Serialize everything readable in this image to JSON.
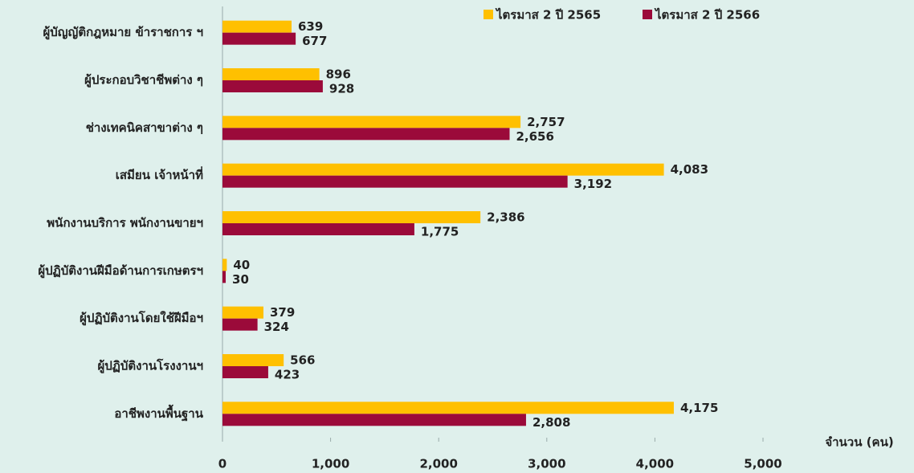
{
  "chart_data": {
    "type": "hbar",
    "categories": [
      "ผู้บัญญัติกฎหมาย ข้าราชการ ฯ",
      "ผู้ประกอบวิชาชีพต่าง ๆ",
      "ช่างเทคนิคสาขาต่าง ๆ",
      "เสมียน เจ้าหน้าที่",
      "พนักงานบริการ พนักงานขายฯ",
      "ผู้ปฏิบัติงานฝีมือด้านการเกษตรฯ",
      "ผู้ปฏิบัติงานโดยใช้ฝีมือฯ",
      "ผู้ปฏิบัติงานโรงงานฯ",
      "อาชีพงานพื้นฐาน"
    ],
    "series": [
      {
        "name": "ไตรมาส 2 ปี 2565",
        "color": "#ffc000",
        "values": [
          639,
          896,
          2757,
          4083,
          2386,
          40,
          379,
          566,
          4175
        ],
        "value_labels": [
          "639",
          "896",
          "2,757",
          "4,083",
          "2,386",
          "40",
          "379",
          "566",
          "4,175"
        ]
      },
      {
        "name": "ไตรมาส 2 ปี 2566",
        "color": "#9b0a3a",
        "values": [
          677,
          928,
          2656,
          3192,
          1775,
          30,
          324,
          423,
          2808
        ],
        "value_labels": [
          "677",
          "928",
          "2,656",
          "3,192",
          "1,775",
          "30",
          "324",
          "423",
          "2,808"
        ]
      }
    ],
    "xlabel": "จำนวน (คน)",
    "xlim": [
      0,
      5000
    ],
    "xticks": [
      0,
      {
        "value": 1000,
        "label": "1,000"
      },
      {
        "value": 2000,
        "label": "2,000"
      },
      {
        "value": 3000,
        "label": "3,000"
      },
      {
        "value": 4000,
        "label": "4,000"
      },
      {
        "value": 5000,
        "label": "5,000"
      }
    ],
    "legend": "top-right"
  }
}
